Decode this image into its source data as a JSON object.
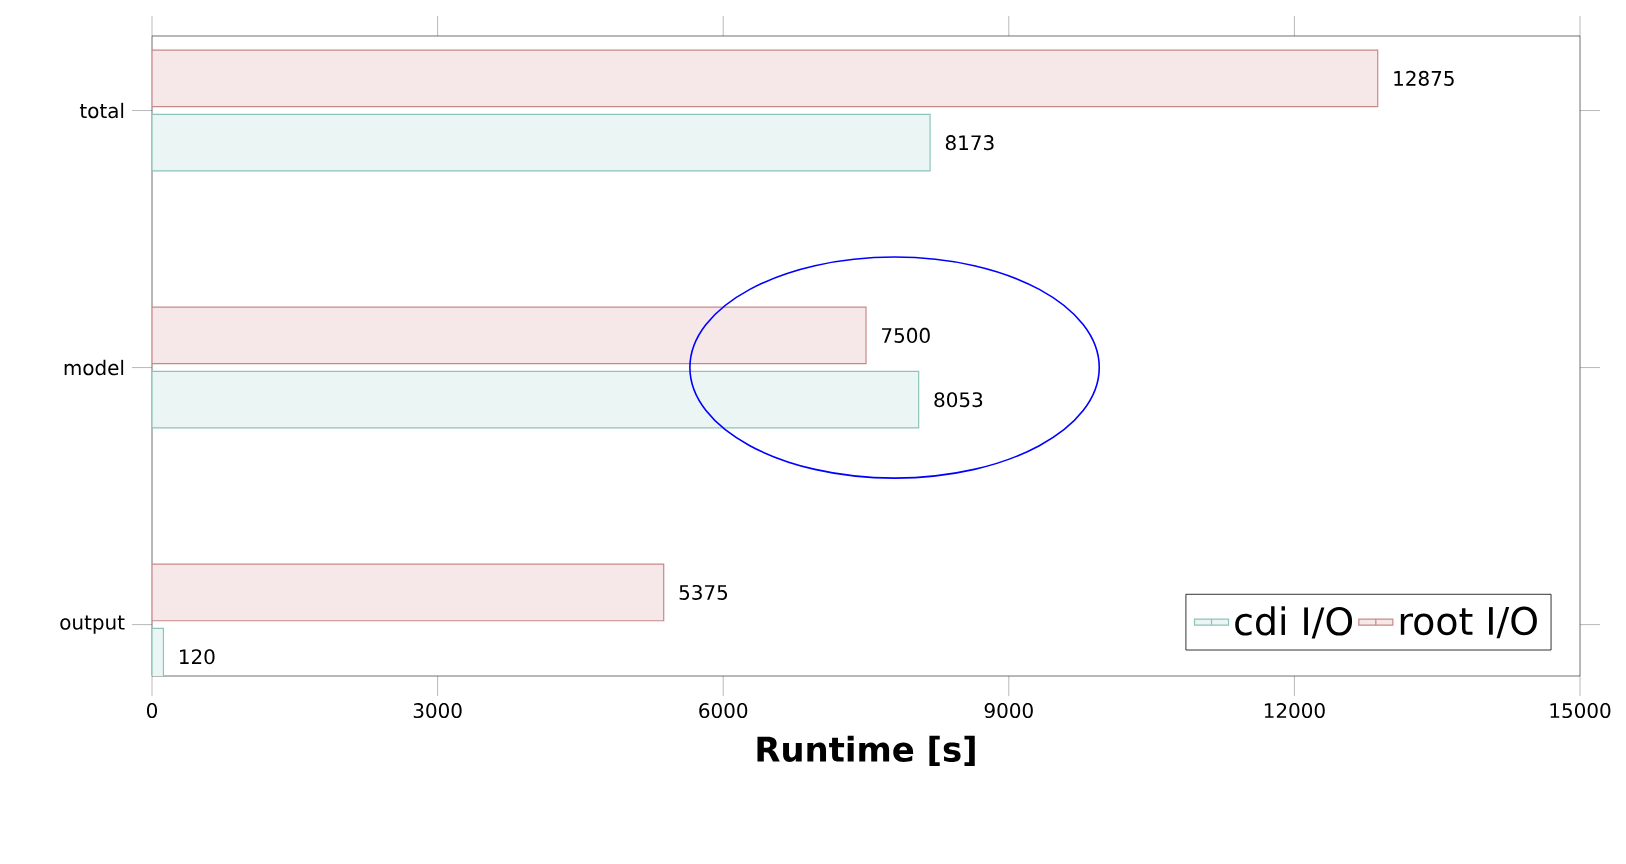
{
  "chart_data": {
    "type": "bar",
    "orientation": "horizontal",
    "xlabel": "Runtime [s]",
    "categories": [
      "total",
      "model",
      "output"
    ],
    "series": [
      {
        "name": "cdi I/O",
        "color": "#ebf6f4",
        "values": [
          8173,
          8053,
          120
        ]
      },
      {
        "name": "root I/O",
        "color": "#f6e8e8",
        "values": [
          12875,
          7500,
          5375
        ]
      }
    ],
    "xlim": [
      0,
      15000
    ],
    "xticks": [
      0,
      3000,
      6000,
      9000,
      12000,
      15000
    ],
    "data_labels": true,
    "legend": "bottom right",
    "grid": false
  }
}
